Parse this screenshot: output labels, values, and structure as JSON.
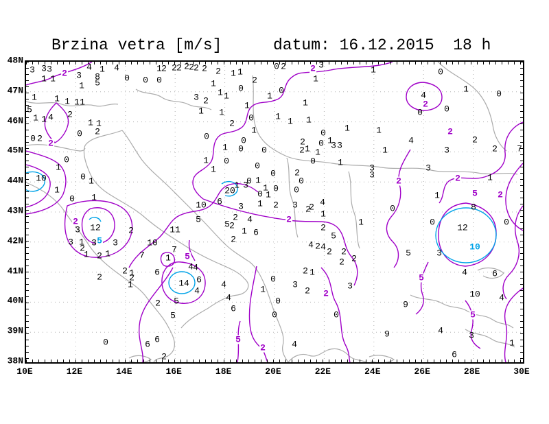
{
  "header": {
    "title": "Brzina vetra [m/s]",
    "datum": "datum: 16.12.2015  18 h"
  },
  "colors": {
    "contour_magenta": "#a000c8",
    "contour_cyan": "#00a3e8",
    "coast_gray": "#ababab",
    "grid_gray": "#b0b0b0",
    "text": "#000000"
  },
  "chart_data": {
    "type": "contour-map",
    "title": "Brzina vetra [m/s]",
    "datum": "16.12.2015",
    "hour": "18 h",
    "variable": "wind speed",
    "units": "m/s",
    "lon_range": [
      10,
      30
    ],
    "lat_range": [
      38,
      48
    ],
    "lon_ticks": [
      "10E",
      "12E",
      "14E",
      "16E",
      "18E",
      "20E",
      "22E",
      "24E",
      "26E",
      "28E",
      "30E"
    ],
    "lat_ticks": [
      "48N",
      "47N",
      "46N",
      "45N",
      "44N",
      "43N",
      "42N",
      "41N",
      "40N",
      "39N",
      "38N"
    ],
    "contour_levels": [
      {
        "value": 2,
        "color": "#a000c8"
      },
      {
        "value": 5,
        "color": "#a000c8"
      },
      {
        "value": 10,
        "color": "#00a3e8"
      }
    ],
    "contour_labels": [
      [
        56,
        17,
        "2",
        "m"
      ],
      [
        418,
        10,
        "2",
        "m"
      ],
      [
        582,
        62,
        "2",
        "m"
      ],
      [
        618,
        102,
        "2",
        "m"
      ],
      [
        36,
        119,
        "2",
        "m"
      ],
      [
        72,
        233,
        "2",
        "m"
      ],
      [
        107,
        261,
        "5",
        "c"
      ],
      [
        383,
        230,
        "2",
        "m"
      ],
      [
        235,
        284,
        "5",
        "m"
      ],
      [
        543,
        174,
        "2",
        "m"
      ],
      [
        629,
        170,
        "2",
        "m"
      ],
      [
        654,
        192,
        "5",
        "m"
      ],
      [
        691,
        194,
        "2",
        "m"
      ],
      [
        654,
        270,
        "10",
        "c"
      ],
      [
        576,
        315,
        "5",
        "m"
      ],
      [
        651,
        369,
        "5",
        "m"
      ],
      [
        309,
        405,
        "5",
        "m"
      ],
      [
        345,
        417,
        "2",
        "m"
      ],
      [
        437,
        338,
        "2",
        "m"
      ]
    ],
    "grid_values": [
      [
        9,
        12,
        3
      ],
      [
        26,
        10,
        3
      ],
      [
        34,
        11,
        3
      ],
      [
        92,
        8,
        4
      ],
      [
        111,
        11,
        1
      ],
      [
        132,
        9,
        4
      ],
      [
        194,
        10,
        1
      ],
      [
        201,
        10,
        2
      ],
      [
        216,
        9,
        2
      ],
      [
        223,
        9,
        2
      ],
      [
        234,
        7,
        2
      ],
      [
        241,
        8,
        2
      ],
      [
        248,
        9,
        2
      ],
      [
        260,
        10,
        2
      ],
      [
        280,
        14,
        2
      ],
      [
        302,
        17,
        1
      ],
      [
        312,
        15,
        1
      ],
      [
        365,
        7,
        0
      ],
      [
        375,
        7,
        2
      ],
      [
        430,
        5,
        3
      ],
      [
        506,
        12,
        1
      ],
      [
        604,
        15,
        0
      ],
      [
        26,
        25,
        1
      ],
      [
        39,
        25,
        1
      ],
      [
        77,
        20,
        3
      ],
      [
        104,
        22,
        8
      ],
      [
        147,
        24,
        0
      ],
      [
        174,
        27,
        0
      ],
      [
        194,
        27,
        0
      ],
      [
        104,
        31,
        5
      ],
      [
        81,
        35,
        1
      ],
      [
        273,
        32,
        1
      ],
      [
        333,
        27,
        2
      ],
      [
        422,
        25,
        1
      ],
      [
        313,
        39,
        0
      ],
      [
        372,
        42,
        0
      ],
      [
        579,
        49,
        4
      ],
      [
        641,
        40,
        1
      ],
      [
        689,
        47,
        0
      ],
      [
        12,
        52,
        1
      ],
      [
        45,
        54,
        1
      ],
      [
        60,
        58,
        1
      ],
      [
        74,
        59,
        1
      ],
      [
        82,
        59,
        1
      ],
      [
        248,
        52,
        3
      ],
      [
        262,
        57,
        2
      ],
      [
        283,
        45,
        1
      ],
      [
        292,
        50,
        1
      ],
      [
        322,
        64,
        1
      ],
      [
        355,
        50,
        1
      ],
      [
        407,
        60,
        1
      ],
      [
        574,
        74,
        0
      ],
      [
        613,
        69,
        0
      ],
      [
        5,
        70,
        5
      ],
      [
        14,
        82,
        1
      ],
      [
        26,
        84,
        1
      ],
      [
        36,
        81,
        4
      ],
      [
        64,
        77,
        2
      ],
      [
        255,
        72,
        1
      ],
      [
        285,
        74,
        1
      ],
      [
        328,
        82,
        0
      ],
      [
        367,
        80,
        1
      ],
      [
        385,
        87,
        1
      ],
      [
        412,
        85,
        1
      ],
      [
        514,
        100,
        1
      ],
      [
        94,
        89,
        1
      ],
      [
        106,
        90,
        1
      ],
      [
        300,
        90,
        2
      ],
      [
        332,
        100,
        1
      ],
      [
        468,
        97,
        1
      ],
      [
        78,
        105,
        0
      ],
      [
        104,
        102,
        2
      ],
      [
        10,
        112,
        0
      ],
      [
        20,
        112,
        2
      ],
      [
        263,
        109,
        0
      ],
      [
        317,
        115,
        0
      ],
      [
        433,
        104,
        0
      ],
      [
        443,
        115,
        1
      ],
      [
        403,
        117,
        2
      ],
      [
        430,
        119,
        0
      ],
      [
        448,
        122,
        3
      ],
      [
        457,
        122,
        3
      ],
      [
        561,
        115,
        4
      ],
      [
        654,
        114,
        2
      ],
      [
        613,
        129,
        3
      ],
      [
        683,
        127,
        2
      ],
      [
        719,
        127,
        7
      ],
      [
        523,
        129,
        1
      ],
      [
        290,
        125,
        1
      ],
      [
        313,
        127,
        0
      ],
      [
        347,
        129,
        0
      ],
      [
        402,
        129,
        2
      ],
      [
        410,
        127,
        1
      ],
      [
        425,
        132,
        1
      ],
      [
        418,
        145,
        0
      ],
      [
        458,
        147,
        1
      ],
      [
        262,
        144,
        1
      ],
      [
        292,
        145,
        0
      ],
      [
        337,
        152,
        0
      ],
      [
        273,
        157,
        1
      ],
      [
        504,
        155,
        3
      ],
      [
        586,
        155,
        3
      ],
      [
        59,
        143,
        0
      ],
      [
        47,
        154,
        1
      ],
      [
        676,
        169,
        1
      ],
      [
        504,
        165,
        3
      ],
      [
        395,
        162,
        2
      ],
      [
        360,
        163,
        0
      ],
      [
        325,
        174,
        0
      ],
      [
        338,
        173,
        1
      ],
      [
        307,
        180,
        1
      ],
      [
        320,
        180,
        3
      ],
      [
        401,
        174,
        0
      ],
      [
        394,
        187,
        0
      ],
      [
        349,
        184,
        1
      ],
      [
        364,
        185,
        0
      ],
      [
        22,
        170,
        10
      ],
      [
        83,
        168,
        0
      ],
      [
        95,
        174,
        1
      ],
      [
        45,
        187,
        1
      ],
      [
        297,
        188,
        20
      ],
      [
        599,
        195,
        1
      ],
      [
        67,
        200,
        0
      ],
      [
        99,
        198,
        1
      ],
      [
        341,
        193,
        0
      ],
      [
        353,
        194,
        1
      ],
      [
        282,
        204,
        6
      ],
      [
        341,
        207,
        1
      ],
      [
        255,
        209,
        10
      ],
      [
        313,
        211,
        3
      ],
      [
        364,
        209,
        2
      ],
      [
        392,
        209,
        3
      ],
      [
        411,
        215,
        2
      ],
      [
        416,
        212,
        2
      ],
      [
        432,
        205,
        4
      ],
      [
        534,
        214,
        0
      ],
      [
        652,
        212,
        8
      ],
      [
        433,
        222,
        1
      ],
      [
        101,
        242,
        12
      ],
      [
        75,
        245,
        3
      ],
      [
        153,
        246,
        2
      ],
      [
        217,
        245,
        11
      ],
      [
        251,
        230,
        5
      ],
      [
        293,
        237,
        5
      ],
      [
        300,
        239,
        2
      ],
      [
        305,
        227,
        2
      ],
      [
        326,
        230,
        4
      ],
      [
        318,
        247,
        1
      ],
      [
        335,
        249,
        6
      ],
      [
        592,
        234,
        0
      ],
      [
        636,
        242,
        12
      ],
      [
        700,
        234,
        0
      ],
      [
        488,
        234,
        1
      ],
      [
        433,
        242,
        2
      ],
      [
        448,
        254,
        5
      ],
      [
        65,
        263,
        3
      ],
      [
        81,
        263,
        1
      ],
      [
        99,
        264,
        3
      ],
      [
        82,
        272,
        2
      ],
      [
        130,
        264,
        3
      ],
      [
        88,
        281,
        1
      ],
      [
        107,
        283,
        2
      ],
      [
        119,
        280,
        1
      ],
      [
        169,
        282,
        7
      ],
      [
        184,
        264,
        10
      ],
      [
        207,
        286,
        1
      ],
      [
        216,
        274,
        7
      ],
      [
        302,
        259,
        2
      ],
      [
        442,
        277,
        2
      ],
      [
        463,
        277,
        2
      ],
      [
        478,
        287,
        2
      ],
      [
        557,
        279,
        5
      ],
      [
        602,
        279,
        3
      ],
      [
        415,
        267,
        4
      ],
      [
        425,
        269,
        2
      ],
      [
        433,
        270,
        4
      ],
      [
        191,
        307,
        6
      ],
      [
        230,
        323,
        14
      ],
      [
        247,
        300,
        4
      ],
      [
        252,
        318,
        6
      ],
      [
        144,
        305,
        2
      ],
      [
        154,
        308,
        1
      ],
      [
        154,
        315,
        2
      ],
      [
        152,
        325,
        1
      ],
      [
        107,
        314,
        2
      ],
      [
        240,
        299,
        4
      ],
      [
        460,
        292,
        2
      ],
      [
        407,
        305,
        2
      ],
      [
        417,
        307,
        1
      ],
      [
        639,
        307,
        4
      ],
      [
        683,
        309,
        6
      ],
      [
        472,
        327,
        3
      ],
      [
        392,
        325,
        3
      ],
      [
        288,
        325,
        4
      ],
      [
        360,
        317,
        0
      ],
      [
        249,
        334,
        4
      ],
      [
        219,
        349,
        5
      ],
      [
        192,
        352,
        2
      ],
      [
        295,
        344,
        4
      ],
      [
        302,
        360,
        6
      ],
      [
        345,
        332,
        1
      ],
      [
        367,
        349,
        0
      ],
      [
        362,
        369,
        0
      ],
      [
        410,
        334,
        2
      ],
      [
        654,
        339,
        10
      ],
      [
        693,
        344,
        4
      ],
      [
        553,
        354,
        9
      ],
      [
        214,
        370,
        5
      ],
      [
        116,
        409,
        0
      ],
      [
        177,
        412,
        6
      ],
      [
        191,
        405,
        6
      ],
      [
        201,
        430,
        2
      ],
      [
        391,
        412,
        4
      ],
      [
        526,
        397,
        9
      ],
      [
        604,
        392,
        4
      ],
      [
        649,
        399,
        3
      ],
      [
        708,
        410,
        1
      ],
      [
        624,
        427,
        6
      ],
      [
        452,
        369,
        0
      ]
    ]
  }
}
